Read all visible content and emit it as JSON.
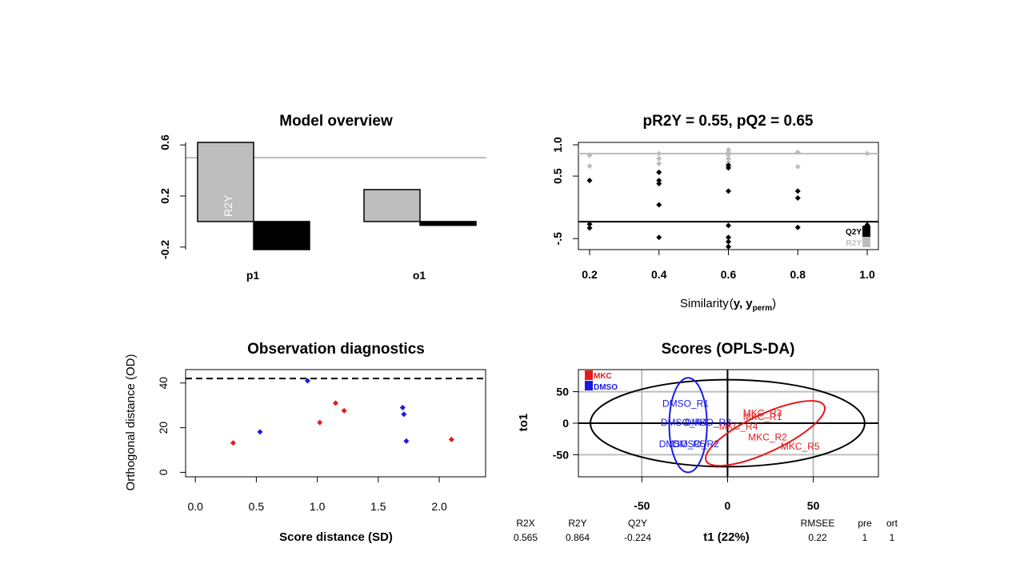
{
  "colors": {
    "grey": "#bdbdbd",
    "black": "#000000",
    "red": "#e41a1c",
    "blue": "#1a1ae6",
    "grid": "#bdbdbd"
  },
  "chart_data": [
    {
      "id": "overview",
      "type": "bar",
      "title": "Model overview",
      "categories": [
        "p1",
        "o1"
      ],
      "series": [
        {
          "name": "R2Y",
          "values": [
            0.62,
            0.25
          ]
        },
        {
          "name": "Q2Y",
          "values": [
            -0.22,
            -0.03
          ]
        }
      ],
      "bar_label": "R2Y",
      "reference_line": 0.5,
      "ylim": [
        -0.22,
        0.62
      ],
      "yticks": [
        -0.2,
        0.2,
        0.6
      ],
      "ytick_labels": [
        "-0.2",
        "0.2",
        "0.6"
      ]
    },
    {
      "id": "permutation",
      "type": "scatter",
      "title": "pR2Y = 0.55, pQ2 = 0.65",
      "xlabel": "Similarity",
      "xlabel_args": "y, y",
      "xlabel_sub": "perm",
      "xlim": [
        0.2,
        1.0
      ],
      "ylim": [
        -0.65,
        1.0
      ],
      "xticks": [
        0.2,
        0.4,
        0.6,
        0.8,
        1.0
      ],
      "xtick_labels": [
        "0.2",
        "0.4",
        "0.6",
        "0.8",
        "1.0"
      ],
      "yticks": [
        -0.5,
        0.5,
        1.0
      ],
      "ytick_labels": [
        "-.5",
        "0.5",
        "1.0"
      ],
      "r2y_line": 0.86,
      "q2y_line": -0.23,
      "r2y_points": [
        [
          0.2,
          0.83
        ],
        [
          0.2,
          0.66
        ],
        [
          0.2,
          0.84
        ],
        [
          0.4,
          0.86
        ],
        [
          0.4,
          0.78
        ],
        [
          0.4,
          0.7
        ],
        [
          0.6,
          0.92
        ],
        [
          0.6,
          0.88
        ],
        [
          0.6,
          0.84
        ],
        [
          0.6,
          0.78
        ],
        [
          0.6,
          0.72
        ],
        [
          0.6,
          0.68
        ],
        [
          0.8,
          0.88
        ],
        [
          0.8,
          0.65
        ],
        [
          1.0,
          0.86
        ]
      ],
      "q2y_points": [
        [
          0.2,
          0.43
        ],
        [
          0.2,
          -0.27
        ],
        [
          0.2,
          -0.33
        ],
        [
          0.4,
          0.56
        ],
        [
          0.4,
          0.43
        ],
        [
          0.4,
          0.38
        ],
        [
          0.4,
          0.04
        ],
        [
          0.4,
          -0.48
        ],
        [
          0.6,
          0.67
        ],
        [
          0.6,
          0.63
        ],
        [
          0.6,
          0.26
        ],
        [
          0.6,
          -0.29
        ],
        [
          0.6,
          -0.48
        ],
        [
          0.6,
          -0.55
        ],
        [
          0.6,
          -0.63
        ],
        [
          0.8,
          0.26
        ],
        [
          0.8,
          0.15
        ],
        [
          0.8,
          -0.32
        ],
        [
          1.0,
          -0.28
        ]
      ],
      "legend": [
        "Q2Y",
        "R2Y"
      ]
    },
    {
      "id": "diagnostics",
      "type": "scatter",
      "title": "Observation diagnostics",
      "xlabel": "Score distance (SD)",
      "ylabel": "Orthogonal distance (OD)",
      "xlim": [
        -0.08,
        2.38
      ],
      "ylim": [
        -2,
        46
      ],
      "xticks": [
        0.0,
        0.5,
        1.0,
        1.5,
        2.0
      ],
      "xtick_labels": [
        "0.0",
        "0.5",
        "1.0",
        "1.5",
        "2.0"
      ],
      "yticks": [
        0,
        20,
        40
      ],
      "ytick_labels": [
        "0",
        "20",
        "40"
      ],
      "threshold": 42,
      "red_points": [
        [
          0.31,
          13.2
        ],
        [
          1.02,
          22.3
        ],
        [
          1.15,
          31.0
        ],
        [
          1.22,
          27.6
        ],
        [
          2.1,
          14.7
        ]
      ],
      "blue_points": [
        [
          0.53,
          18.1
        ],
        [
          0.92,
          41.0
        ],
        [
          1.7,
          29.0
        ],
        [
          1.71,
          26.0
        ],
        [
          1.73,
          14.0
        ]
      ]
    },
    {
      "id": "scores",
      "type": "scatter",
      "title": "Scores (OPLS-DA)",
      "xlabel": "t1 (22%)",
      "ylabel": "to1",
      "xlim": [
        -87,
        88
      ],
      "ylim": [
        -85,
        85
      ],
      "xticks": [
        -50,
        0,
        50
      ],
      "xtick_labels": [
        "-50",
        "0",
        "50"
      ],
      "yticks": [
        -50,
        0,
        50
      ],
      "ytick_labels": [
        "-50",
        "0",
        "50"
      ],
      "legend": [
        "MKC",
        "DMSO"
      ],
      "points": [
        {
          "label": "MKC_R1",
          "group": "MKC",
          "x": 9,
          "y": 10
        },
        {
          "label": "MKC_R3",
          "group": "MKC",
          "x": 9,
          "y": 16
        },
        {
          "label": "MKC_R4",
          "group": "MKC",
          "x": -5,
          "y": -5
        },
        {
          "label": "MKC_R2",
          "group": "MKC",
          "x": 12,
          "y": -22
        },
        {
          "label": "MKC_R5",
          "group": "MKC",
          "x": 31,
          "y": -37
        },
        {
          "label": "DMSO_R1",
          "group": "DMSO",
          "x": -38,
          "y": 31
        },
        {
          "label": "DMSO_R4",
          "group": "DMSO",
          "x": -39,
          "y": 1
        },
        {
          "label": "DMSO_R3",
          "group": "DMSO",
          "x": -25,
          "y": 1
        },
        {
          "label": "DMSO_R5",
          "group": "DMSO",
          "x": -40,
          "y": -33
        },
        {
          "label": "DMSO_R2",
          "group": "DMSO",
          "x": -32,
          "y": -33
        }
      ],
      "ellipses": [
        {
          "group": "all",
          "cx": 0,
          "cy": 0,
          "rx": 80,
          "ry": 69
        },
        {
          "group": "MKC",
          "cx": 22,
          "cy": -16,
          "rx": 38,
          "ry": 30,
          "angle": -25
        },
        {
          "group": "DMSO",
          "cx": -23,
          "cy": -3,
          "rx": 11,
          "ry": 75
        }
      ],
      "summary": {
        "headers": [
          "R2X",
          "R2Y",
          "Q2Y",
          "RMSEE",
          "pre",
          "ort"
        ],
        "values": [
          "0.565",
          "0.864",
          "-0.224",
          "0.22",
          "1",
          "1"
        ]
      }
    }
  ]
}
